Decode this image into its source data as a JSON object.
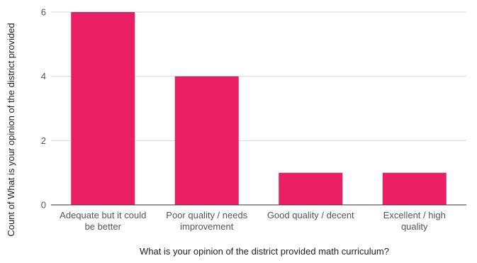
{
  "chart_data": {
    "type": "bar",
    "title": "",
    "xlabel": "What is your opinion of the district provided math curriculum?",
    "ylabel": "Count of What is your opinion of the district provided",
    "categories": [
      [
        "Adequate but it could",
        "be better"
      ],
      [
        "Poor quality / needs",
        "improvement"
      ],
      [
        "Good quality / decent"
      ],
      [
        "Excellent / high",
        "quality"
      ]
    ],
    "values": [
      6,
      4,
      1,
      1
    ],
    "ylim": [
      0,
      6
    ],
    "yticks": [
      "0",
      "2",
      "4",
      "6"
    ],
    "grid": true,
    "legend": "none",
    "colors": {
      "bar": "#e91e63",
      "grid": "#d9d9d9",
      "axis": "#333333",
      "tick_text": "#555555",
      "label_text": "#222222"
    }
  }
}
